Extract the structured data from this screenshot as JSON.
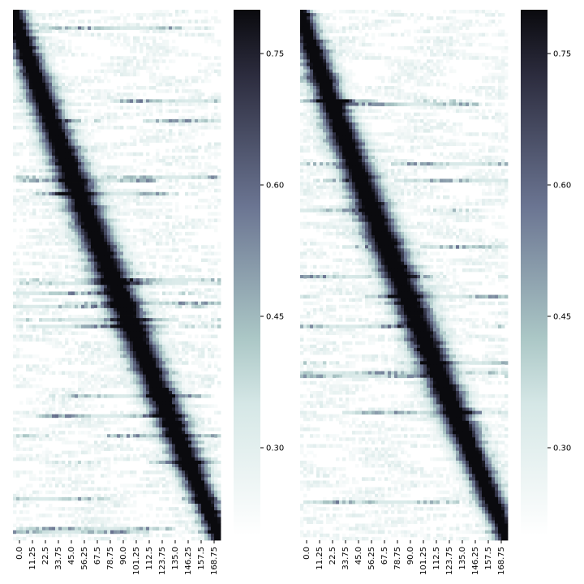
{
  "chart_data": [
    {
      "type": "heatmap",
      "title": "",
      "xlabel": "",
      "ylabel": "",
      "x_tick_labels": [
        "0.0",
        "11.25",
        "22.5",
        "33.75",
        "45.0",
        "56.25",
        "67.5",
        "78.75",
        "90.0",
        "101.25",
        "112.5",
        "123.75",
        "135.0",
        "146.25",
        "157.5",
        "168.75"
      ],
      "x_range": [
        0,
        180
      ],
      "n_rows": 160,
      "colormap": "bone_r",
      "colorbar": {
        "vmin": 0.2,
        "vmax": 0.8,
        "tick_values": [
          0.3,
          0.45,
          0.6,
          0.75
        ],
        "tick_labels": [
          "0.30",
          "0.45",
          "0.60",
          "0.75"
        ]
      },
      "ridge": {
        "start_deg": 0,
        "end_deg": 180,
        "peak_value": 0.8,
        "background_value": 0.2
      }
    },
    {
      "type": "heatmap",
      "title": "",
      "xlabel": "",
      "ylabel": "",
      "x_tick_labels": [
        "0.0",
        "11.25",
        "22.5",
        "33.75",
        "45.0",
        "56.25",
        "67.5",
        "78.75",
        "90.0",
        "101.25",
        "112.5",
        "123.75",
        "135.0",
        "146.25",
        "157.5",
        "168.75"
      ],
      "x_range": [
        0,
        180
      ],
      "n_rows": 160,
      "colormap": "bone_r",
      "colorbar": {
        "vmin": 0.2,
        "vmax": 0.8,
        "tick_values": [
          0.3,
          0.45,
          0.6,
          0.75
        ],
        "tick_labels": [
          "0.30",
          "0.45",
          "0.60",
          "0.75"
        ]
      },
      "ridge": {
        "start_deg": 0,
        "end_deg": 180,
        "peak_value": 0.8,
        "background_value": 0.2
      }
    }
  ]
}
